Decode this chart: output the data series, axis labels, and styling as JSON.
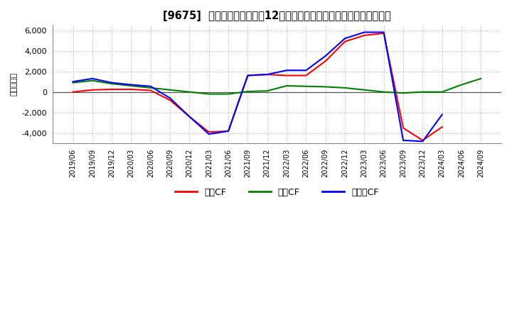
{
  "title": "[9675]  キャッシュフローの12か月移動合計の対前年同期増減額の推移",
  "ylabel": "（百万円）",
  "background_color": "#ffffff",
  "grid_color": "#aaaaaa",
  "plot_bg_color": "#ffffff",
  "ylim": [
    -5000,
    6500
  ],
  "yticks": [
    -4000,
    -2000,
    0,
    2000,
    4000,
    6000
  ],
  "legend_labels": [
    "営業CF",
    "投資CF",
    "フリーCF"
  ],
  "legend_colors": [
    "#ff0000",
    "#008000",
    "#0000ff"
  ],
  "x_labels": [
    "2019/06",
    "2019/09",
    "2019/12",
    "2020/03",
    "2020/06",
    "2020/09",
    "2020/12",
    "2021/03",
    "2021/06",
    "2021/09",
    "2021/12",
    "2022/03",
    "2022/06",
    "2022/09",
    "2022/12",
    "2023/03",
    "2023/06",
    "2023/09",
    "2023/12",
    "2024/03",
    "2024/06",
    "2024/09"
  ],
  "operating_cf": [
    0,
    200,
    250,
    250,
    150,
    -800,
    -2400,
    -3900,
    -3800,
    1600,
    1700,
    1600,
    1600,
    3000,
    4900,
    5500,
    5700,
    -3500,
    -4700,
    -3400,
    null,
    null
  ],
  "investing_cf": [
    900,
    1100,
    800,
    600,
    400,
    200,
    0,
    -200,
    -200,
    50,
    100,
    600,
    550,
    500,
    400,
    200,
    0,
    -100,
    0,
    0,
    700,
    1300
  ],
  "free_cf": [
    1000,
    1300,
    900,
    700,
    550,
    -600,
    -2400,
    -4100,
    -3800,
    1600,
    1700,
    2100,
    2100,
    3500,
    5200,
    5800,
    5800,
    -4700,
    -4800,
    -2200,
    null,
    null
  ]
}
